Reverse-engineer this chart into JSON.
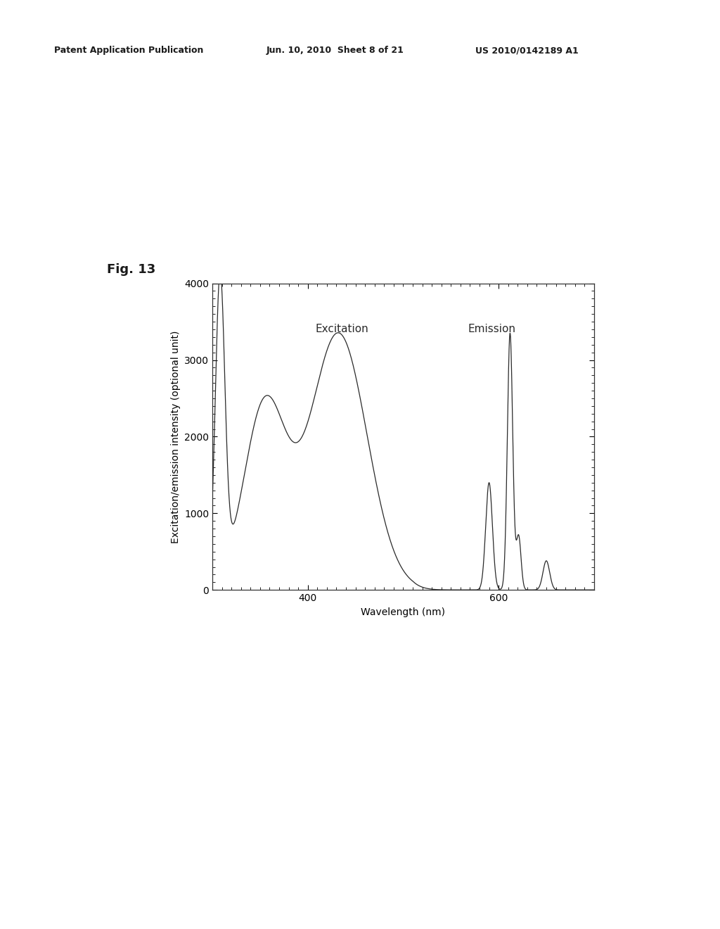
{
  "title": "Fig. 13",
  "xlabel": "Wavelength (nm)",
  "ylabel": "Excitation/emission intensity (optional unit)",
  "xlim": [
    300,
    700
  ],
  "ylim": [
    0,
    4000
  ],
  "yticks": [
    0,
    1000,
    2000,
    3000,
    4000
  ],
  "xtick_labels": [
    "400",
    "600"
  ],
  "xtick_positions": [
    400,
    600
  ],
  "excitation_label": "Excitation",
  "emission_label": "Emission",
  "header_left": "Patent Application Publication",
  "header_mid": "Jun. 10, 2010  Sheet 8 of 21",
  "header_right": "US 2010/0142189 A1",
  "bg_color": "#ffffff",
  "line_color": "#2a2a2a",
  "fig_label_fontsize": 13,
  "axis_label_fontsize": 10,
  "tick_fontsize": 10,
  "header_fontsize": 9
}
